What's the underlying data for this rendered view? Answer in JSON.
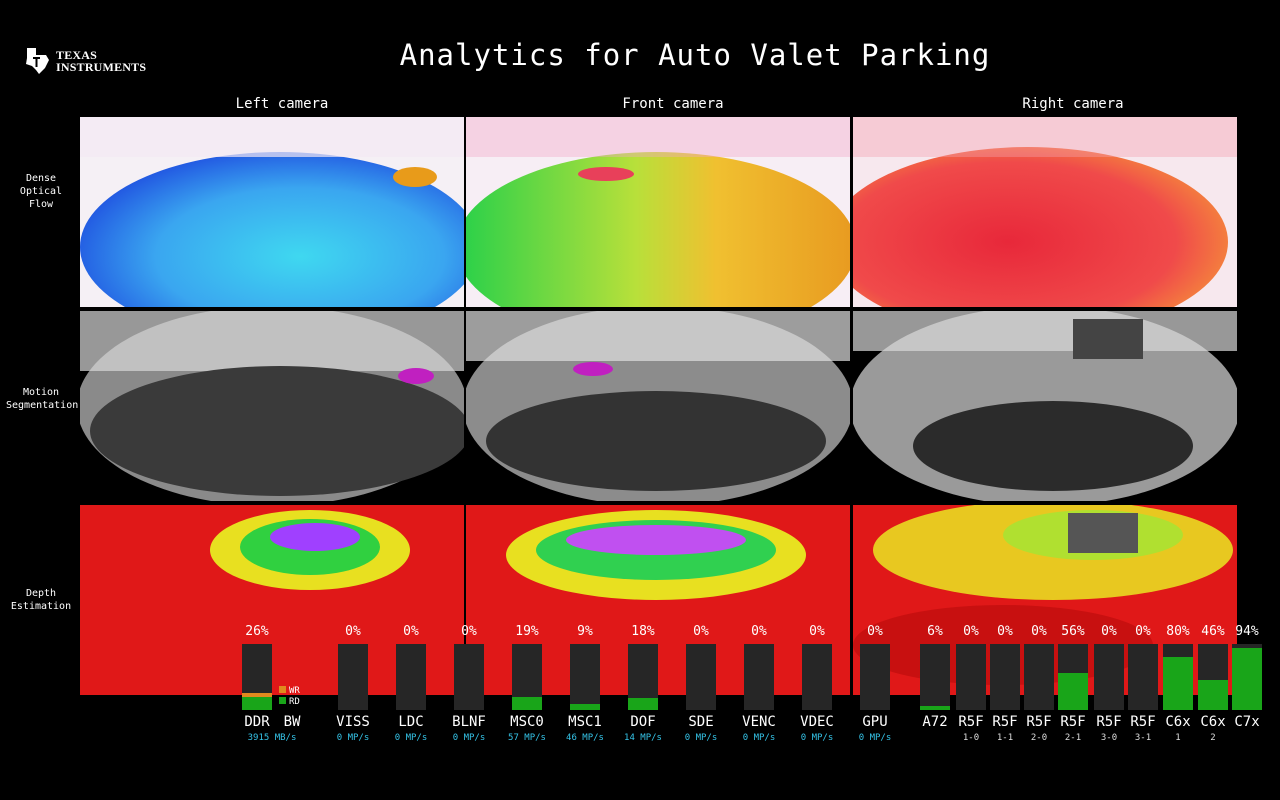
{
  "header": {
    "logo_line1": "TEXAS",
    "logo_line2": "INSTRUMENTS",
    "title": "Analytics for Auto Valet Parking"
  },
  "columns": [
    "Left camera",
    "Front camera",
    "Right camera"
  ],
  "rows": [
    {
      "label_lines": [
        "Dense",
        "Optical",
        "Flow"
      ]
    },
    {
      "label_lines": [
        "Motion",
        "Segmentation"
      ]
    },
    {
      "label_lines": [
        "Depth",
        "Estimation"
      ]
    }
  ],
  "colors": {
    "bar_fill": "#19a519",
    "bar_bg": "#262626",
    "bw_write": "#e08a1e",
    "bw_read": "#19a519",
    "sub_text": "#35c4e8"
  },
  "bandwidth": {
    "name": "DDR",
    "name2": "BW",
    "pct": "26%",
    "value": 0.26,
    "write_fraction": 0.06,
    "sub": "3915 MB/s",
    "legend_wr": "WR",
    "legend_rd": "RD"
  },
  "hw": [
    {
      "pct": "0%",
      "value": 0.0,
      "name": "VISS",
      "sub": "0 MP/s"
    },
    {
      "pct": "0%",
      "value": 0.0,
      "name": "LDC",
      "sub": "0 MP/s"
    },
    {
      "pct": "0%",
      "value": 0.0,
      "name": "BLNF",
      "sub": "0 MP/s"
    },
    {
      "pct": "19%",
      "value": 0.19,
      "name": "MSC0",
      "sub": "57 MP/s"
    },
    {
      "pct": "9%",
      "value": 0.09,
      "name": "MSC1",
      "sub": "46 MP/s"
    },
    {
      "pct": "18%",
      "value": 0.18,
      "name": "DOF",
      "sub": "14 MP/s"
    },
    {
      "pct": "0%",
      "value": 0.0,
      "name": "SDE",
      "sub": "0 MP/s"
    },
    {
      "pct": "0%",
      "value": 0.0,
      "name": "VENC",
      "sub": "0 MP/s"
    },
    {
      "pct": "0%",
      "value": 0.0,
      "name": "VDEC",
      "sub": "0 MP/s"
    },
    {
      "pct": "0%",
      "value": 0.0,
      "name": "GPU",
      "sub": "0 MP/s"
    }
  ],
  "cores": [
    {
      "pct": "6%",
      "value": 0.06,
      "name": "A72",
      "sub": ""
    },
    {
      "pct": "0%",
      "value": 0.0,
      "name": "R5F",
      "sub": "1-0"
    },
    {
      "pct": "0%",
      "value": 0.0,
      "name": "R5F",
      "sub": "1-1"
    },
    {
      "pct": "0%",
      "value": 0.0,
      "name": "R5F",
      "sub": "2-0"
    },
    {
      "pct": "56%",
      "value": 0.56,
      "name": "R5F",
      "sub": "2-1"
    },
    {
      "pct": "0%",
      "value": 0.0,
      "name": "R5F",
      "sub": "3-0"
    },
    {
      "pct": "0%",
      "value": 0.0,
      "name": "R5F",
      "sub": "3-1"
    },
    {
      "pct": "80%",
      "value": 0.8,
      "name": "C6x",
      "sub": "1"
    },
    {
      "pct": "46%",
      "value": 0.46,
      "name": "C6x",
      "sub": "2"
    },
    {
      "pct": "94%",
      "value": 0.94,
      "name": "C7x",
      "sub": ""
    }
  ]
}
